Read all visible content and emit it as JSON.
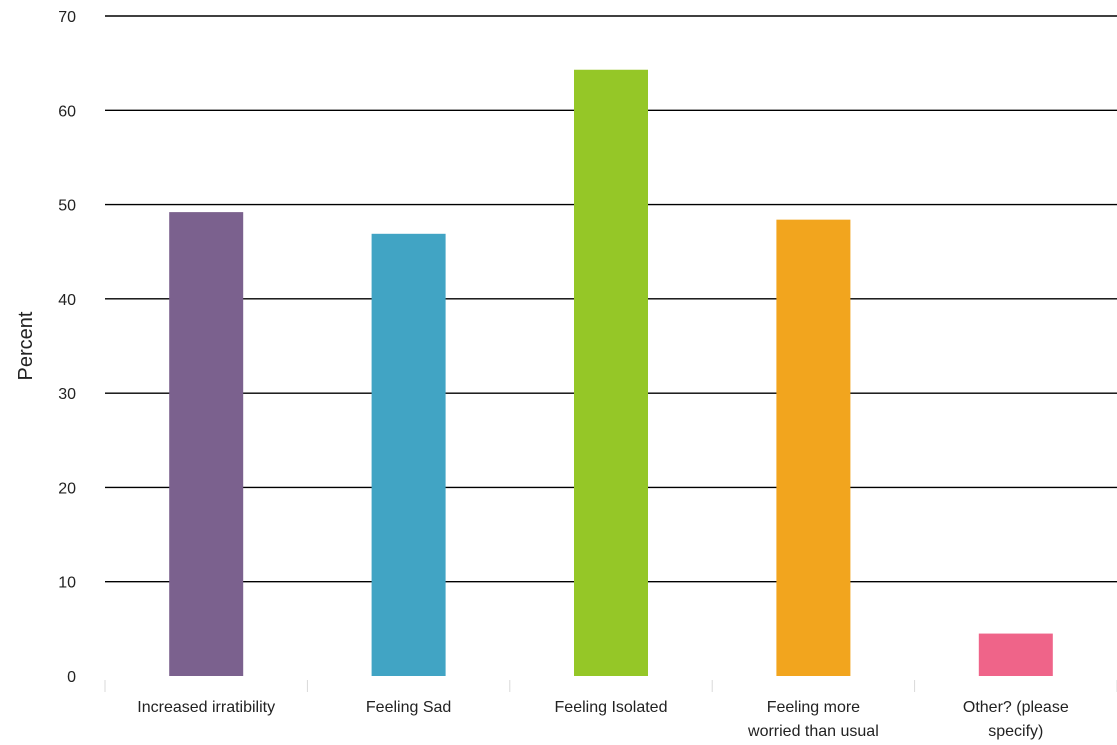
{
  "chart_data": {
    "type": "bar",
    "title": "",
    "xlabel": "",
    "ylabel": "Percent",
    "ylim": [
      0,
      70
    ],
    "yticks": [
      0,
      10,
      20,
      30,
      40,
      50,
      60,
      70
    ],
    "grid": true,
    "legend": "none",
    "categories": [
      [
        "Increased irratibility"
      ],
      [
        "Feeling Sad"
      ],
      [
        "Feeling Isolated"
      ],
      [
        "Feeling more",
        "worried than usual"
      ],
      [
        "Other? (please",
        "specify)"
      ]
    ],
    "values": [
      49.2,
      46.9,
      64.3,
      48.4,
      4.5
    ],
    "colors": [
      "#7b618e",
      "#41a4c4",
      "#95c727",
      "#f2a51e",
      "#ef6489"
    ]
  }
}
